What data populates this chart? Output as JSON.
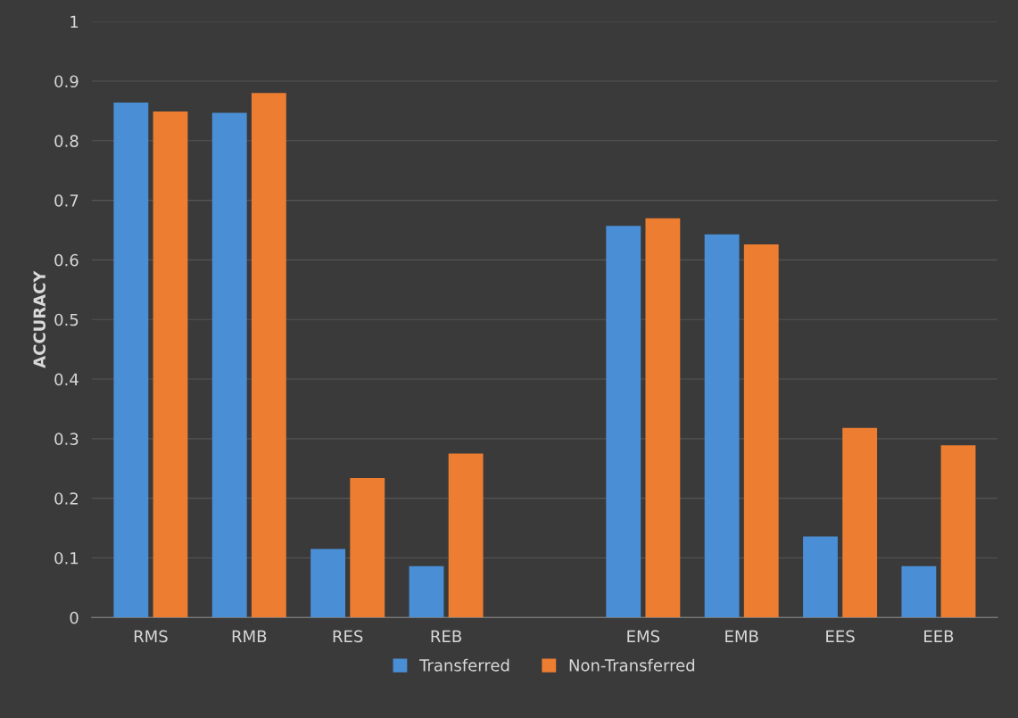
{
  "chart_data": {
    "type": "bar",
    "ylabel": "ACCURACY",
    "categories": [
      "RMS",
      "RMB",
      "RES",
      "REB",
      null,
      "EMS",
      "EMB",
      "EES",
      "EEB"
    ],
    "series": [
      {
        "name": "Transferred",
        "color": "#4a8fd6",
        "values": [
          0.864,
          0.847,
          0.115,
          0.086,
          null,
          0.657,
          0.643,
          0.136,
          0.086
        ]
      },
      {
        "name": "Non-Transferred",
        "color": "#ed7d31",
        "values": [
          0.849,
          0.88,
          0.234,
          0.275,
          null,
          0.67,
          0.626,
          0.318,
          0.289
        ]
      }
    ],
    "ylim": [
      0,
      1
    ],
    "yticks": [
      0,
      0.1,
      0.2,
      0.3,
      0.4,
      0.5,
      0.6,
      0.7,
      0.8,
      0.9,
      1
    ],
    "grid": "y",
    "legend": "bottom"
  }
}
